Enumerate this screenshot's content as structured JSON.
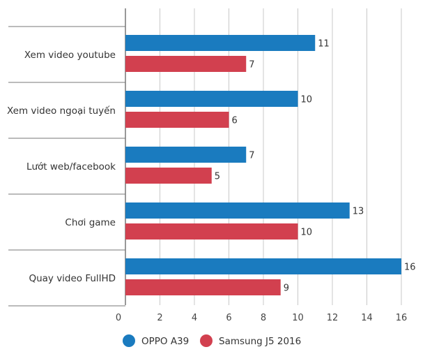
{
  "chart_data": {
    "type": "bar",
    "orientation": "horizontal",
    "categories": [
      "Xem video youtube",
      "Xem video ngoại tuyến",
      "Lướt web/facebook",
      "Chơi game",
      "Quay video FullHD"
    ],
    "series": [
      {
        "name": "OPPO A39",
        "color": "#1a7bbf",
        "values": [
          11,
          10,
          7,
          13,
          16
        ]
      },
      {
        "name": "Samsung J5 2016",
        "color": "#d2404f",
        "values": [
          7,
          6,
          5,
          10,
          9
        ]
      }
    ],
    "xlim": [
      0,
      16
    ],
    "x_ticks": [
      {
        "value": 0,
        "label": "0"
      },
      {
        "value": 2,
        "label": "2"
      },
      {
        "value": 4,
        "label": "4"
      },
      {
        "value": 6,
        "label": "6"
      },
      {
        "value": 8,
        "label": "8"
      },
      {
        "value": 10,
        "label": "10"
      },
      {
        "value": 12,
        "label": "12"
      },
      {
        "value": 14,
        "label": "14"
      },
      {
        "value": 16,
        "label": "16"
      }
    ],
    "grid": true,
    "legend": "bottom-center"
  }
}
